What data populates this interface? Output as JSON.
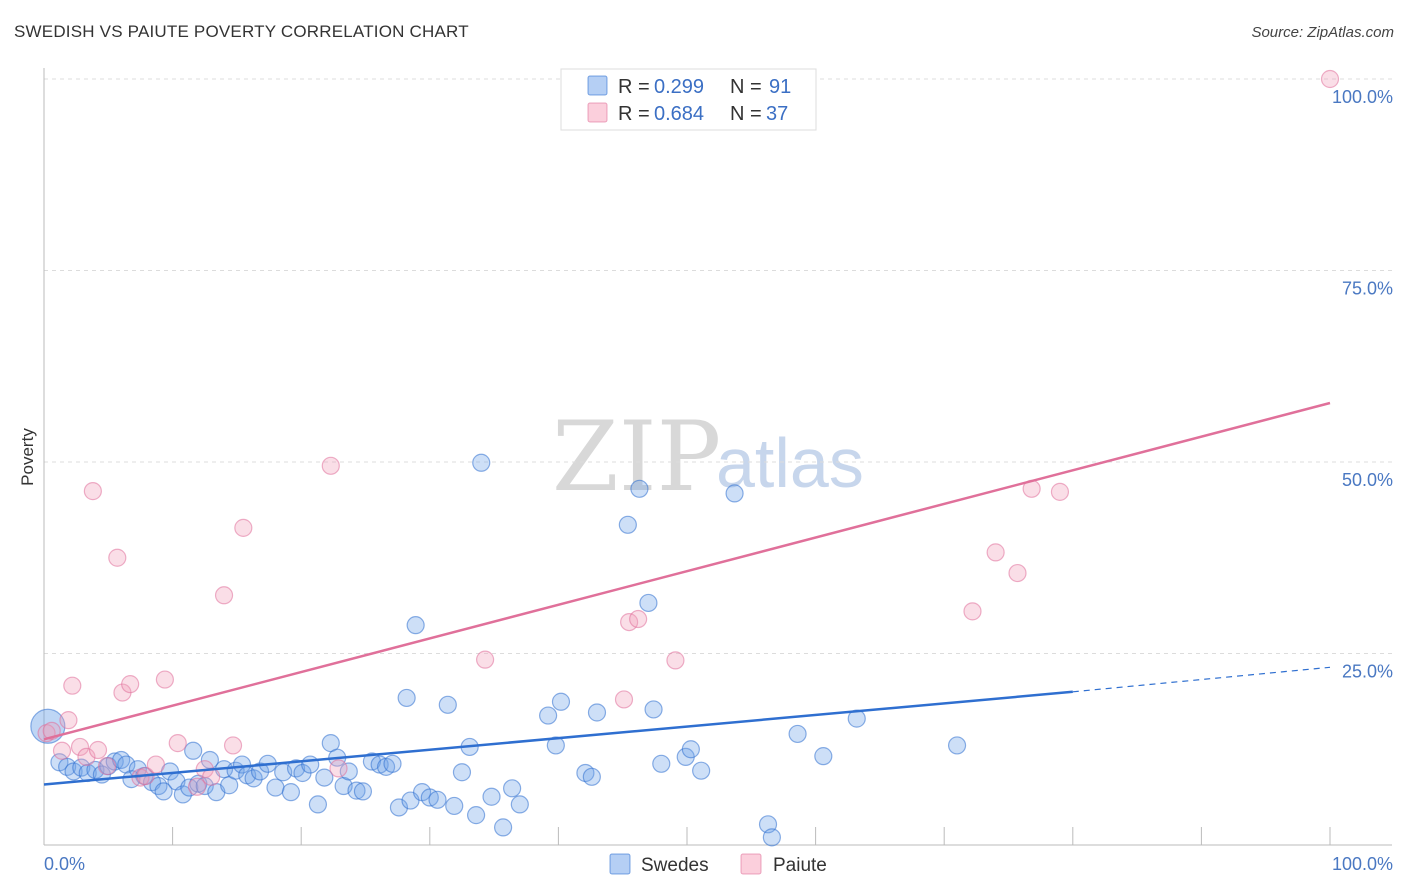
{
  "title": "SWEDISH VS PAIUTE POVERTY CORRELATION CHART",
  "source": "Source: ZipAtlas.com",
  "watermark": {
    "zip": "ZIP",
    "atlas": "atlas"
  },
  "chart_data": {
    "type": "scatter",
    "ylabel": "Poverty",
    "xlim": [
      0,
      100
    ],
    "ylim": [
      0,
      100
    ],
    "x_tick_labels": [
      "0.0%",
      "100.0%"
    ],
    "y_ticks": [
      25,
      50,
      75,
      100
    ],
    "y_tick_labels": [
      "25.0%",
      "50.0%",
      "75.0%",
      "100.0%"
    ],
    "colors": {
      "swedes": "#6fa3e8",
      "swedes_line": "#2f6fd0",
      "paiute": "#f2a0bb",
      "paiute_line": "#e0709a"
    },
    "legend": {
      "rows": [
        {
          "r_label": "R =",
          "r_value": "0.299",
          "n_label": "N =",
          "n_value": "91"
        },
        {
          "r_label": "R =",
          "r_value": "0.684",
          "n_label": "N =",
          "n_value": "37"
        }
      ]
    },
    "series": [
      {
        "name": "Swedes",
        "trend": {
          "x0": 0,
          "y0": 7.9,
          "x1": 80,
          "y1": 20.0,
          "dash_x1": 100,
          "dash_y1": 23.2
        },
        "points": [
          [
            0.3,
            15.5
          ],
          [
            1.2,
            10.8
          ],
          [
            1.8,
            10.2
          ],
          [
            2.3,
            9.6
          ],
          [
            2.9,
            10.1
          ],
          [
            3.4,
            9.4
          ],
          [
            4.0,
            9.8
          ],
          [
            4.5,
            9.2
          ],
          [
            5.0,
            10.3
          ],
          [
            5.5,
            10.9
          ],
          [
            6.0,
            11.1
          ],
          [
            6.4,
            10.5
          ],
          [
            6.8,
            8.6
          ],
          [
            7.3,
            9.9
          ],
          [
            7.8,
            9.0
          ],
          [
            8.4,
            8.2
          ],
          [
            8.9,
            7.7
          ],
          [
            9.3,
            7.0
          ],
          [
            9.8,
            9.6
          ],
          [
            10.3,
            8.3
          ],
          [
            10.8,
            6.6
          ],
          [
            11.3,
            7.5
          ],
          [
            11.6,
            12.3
          ],
          [
            12.0,
            8.0
          ],
          [
            12.5,
            7.7
          ],
          [
            12.9,
            11.1
          ],
          [
            13.4,
            6.9
          ],
          [
            14.0,
            9.9
          ],
          [
            14.4,
            7.8
          ],
          [
            14.9,
            9.7
          ],
          [
            15.4,
            10.5
          ],
          [
            15.8,
            9.1
          ],
          [
            16.3,
            8.7
          ],
          [
            16.8,
            9.6
          ],
          [
            17.4,
            10.6
          ],
          [
            18.0,
            7.5
          ],
          [
            18.6,
            9.5
          ],
          [
            19.2,
            6.9
          ],
          [
            19.6,
            10.0
          ],
          [
            20.1,
            9.4
          ],
          [
            20.7,
            10.5
          ],
          [
            21.3,
            5.3
          ],
          [
            21.8,
            8.8
          ],
          [
            22.3,
            13.3
          ],
          [
            22.8,
            11.4
          ],
          [
            23.3,
            7.7
          ],
          [
            23.7,
            9.6
          ],
          [
            24.3,
            7.1
          ],
          [
            24.8,
            7.0
          ],
          [
            25.5,
            10.9
          ],
          [
            26.1,
            10.5
          ],
          [
            26.6,
            10.2
          ],
          [
            27.1,
            10.6
          ],
          [
            27.6,
            4.9
          ],
          [
            28.2,
            19.2
          ],
          [
            28.5,
            5.8
          ],
          [
            28.9,
            28.7
          ],
          [
            29.4,
            6.9
          ],
          [
            30.0,
            6.2
          ],
          [
            30.6,
            5.9
          ],
          [
            31.4,
            18.3
          ],
          [
            31.9,
            5.1
          ],
          [
            32.5,
            9.5
          ],
          [
            33.1,
            12.8
          ],
          [
            33.6,
            3.9
          ],
          [
            34.0,
            49.9
          ],
          [
            34.8,
            6.3
          ],
          [
            35.7,
            2.3
          ],
          [
            36.4,
            7.4
          ],
          [
            37.0,
            5.3
          ],
          [
            39.2,
            16.9
          ],
          [
            39.8,
            13.0
          ],
          [
            40.2,
            18.7
          ],
          [
            42.1,
            9.4
          ],
          [
            42.6,
            8.9
          ],
          [
            43.0,
            17.3
          ],
          [
            45.4,
            41.8
          ],
          [
            46.3,
            46.5
          ],
          [
            47.0,
            31.6
          ],
          [
            47.4,
            17.7
          ],
          [
            48.0,
            10.6
          ],
          [
            49.9,
            11.5
          ],
          [
            50.3,
            12.5
          ],
          [
            51.1,
            9.7
          ],
          [
            53.7,
            45.9
          ],
          [
            56.3,
            2.7
          ],
          [
            56.6,
            1.0
          ],
          [
            58.6,
            14.5
          ],
          [
            60.6,
            11.6
          ],
          [
            63.2,
            16.5
          ],
          [
            71.0,
            13.0
          ]
        ]
      },
      {
        "name": "Paiute",
        "trend": {
          "x0": 0,
          "y0": 13.8,
          "x1": 100,
          "y1": 57.7
        },
        "points": [
          [
            0.2,
            14.6
          ],
          [
            0.6,
            14.9
          ],
          [
            1.4,
            12.3
          ],
          [
            1.9,
            16.3
          ],
          [
            2.2,
            20.8
          ],
          [
            2.8,
            12.8
          ],
          [
            3.3,
            11.5
          ],
          [
            3.8,
            46.2
          ],
          [
            4.2,
            12.4
          ],
          [
            4.9,
            10.3
          ],
          [
            5.7,
            37.5
          ],
          [
            6.1,
            19.9
          ],
          [
            6.7,
            21.0
          ],
          [
            7.5,
            8.8
          ],
          [
            7.9,
            9.0
          ],
          [
            8.7,
            10.5
          ],
          [
            9.4,
            21.6
          ],
          [
            10.4,
            13.3
          ],
          [
            11.9,
            7.6
          ],
          [
            12.5,
            9.9
          ],
          [
            13.0,
            8.9
          ],
          [
            14.0,
            32.6
          ],
          [
            14.7,
            13.0
          ],
          [
            15.5,
            41.4
          ],
          [
            22.3,
            49.5
          ],
          [
            22.9,
            10.0
          ],
          [
            34.3,
            24.2
          ],
          [
            45.1,
            19.0
          ],
          [
            45.5,
            29.1
          ],
          [
            46.2,
            29.5
          ],
          [
            49.1,
            24.1
          ],
          [
            72.2,
            30.5
          ],
          [
            74.0,
            38.2
          ],
          [
            75.7,
            35.5
          ],
          [
            76.8,
            46.5
          ],
          [
            79.0,
            46.1
          ],
          [
            100.0,
            100.0
          ]
        ]
      }
    ]
  }
}
